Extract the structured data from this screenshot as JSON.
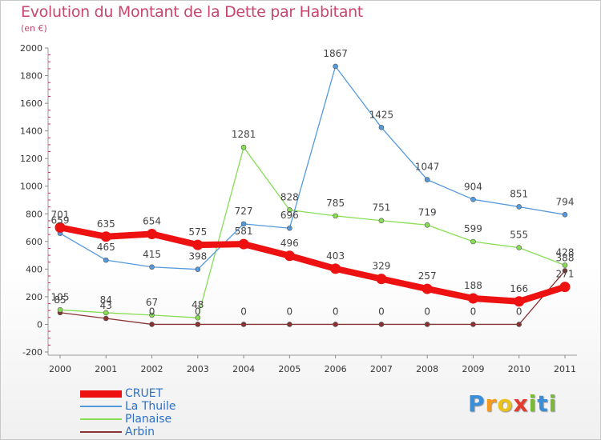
{
  "header": {
    "title": "Evolution du Montant de la Dette par Habitant",
    "subtitle": "(en €)"
  },
  "logo": {
    "letters": [
      {
        "ch": "P",
        "color": "#3b8fd8"
      },
      {
        "ch": "r",
        "color": "#f39a1e"
      },
      {
        "ch": "o",
        "color": "#e8c21a"
      },
      {
        "ch": "x",
        "color": "#e23b2e"
      },
      {
        "ch": "i",
        "color": "#7ab83a"
      },
      {
        "ch": "t",
        "color": "#3b8fd8"
      },
      {
        "ch": "i",
        "color": "#7ab83a"
      }
    ]
  },
  "chart_data": {
    "type": "line",
    "title": "Evolution du Montant de la Dette par Habitant",
    "subtitle": "(en €)",
    "x": [
      "2000",
      "2001",
      "2002",
      "2003",
      "2004",
      "2005",
      "2006",
      "2007",
      "2008",
      "2009",
      "2010",
      "2011"
    ],
    "ylim": [
      -200,
      2000
    ],
    "yticks": [
      "-200",
      "0",
      "200",
      "400",
      "600",
      "800",
      "1000",
      "1200",
      "1400",
      "1600",
      "1800",
      "2000"
    ],
    "grid": false,
    "legend_position": "bottom-left",
    "series": [
      {
        "name": "CRUET",
        "color": "#ee1111",
        "values": [
          701,
          635,
          654,
          575,
          581,
          496,
          403,
          329,
          257,
          188,
          166,
          271
        ],
        "labels": [
          "701",
          "635",
          "654",
          "575",
          "581",
          "496",
          "403",
          "329",
          "257",
          "188",
          "166",
          "271"
        ]
      },
      {
        "name": "La Thuile",
        "color": "#5599dd",
        "values": [
          659,
          465,
          415,
          398,
          727,
          696,
          1867,
          1425,
          1047,
          904,
          851,
          794
        ],
        "labels": [
          "659",
          "465",
          "415",
          "398",
          "727",
          "696",
          "1867",
          "1425",
          "1047",
          "904",
          "851",
          "794"
        ]
      },
      {
        "name": "Planaise",
        "color": "#88dd55",
        "values": [
          105,
          84,
          67,
          48,
          1281,
          828,
          785,
          751,
          719,
          599,
          555,
          428
        ],
        "labels": [
          "105",
          "84",
          "67",
          "48",
          "1281",
          "828",
          "785",
          "751",
          "719",
          "599",
          "555",
          "428"
        ]
      },
      {
        "name": "Arbin",
        "color": "#883333",
        "values": [
          85,
          43,
          0,
          0,
          0,
          0,
          0,
          0,
          0,
          0,
          0,
          388
        ],
        "labels": [
          "85",
          "43",
          "0",
          "0",
          "0",
          "0",
          "0",
          "0",
          "0",
          "0",
          "0",
          "388"
        ]
      }
    ]
  }
}
